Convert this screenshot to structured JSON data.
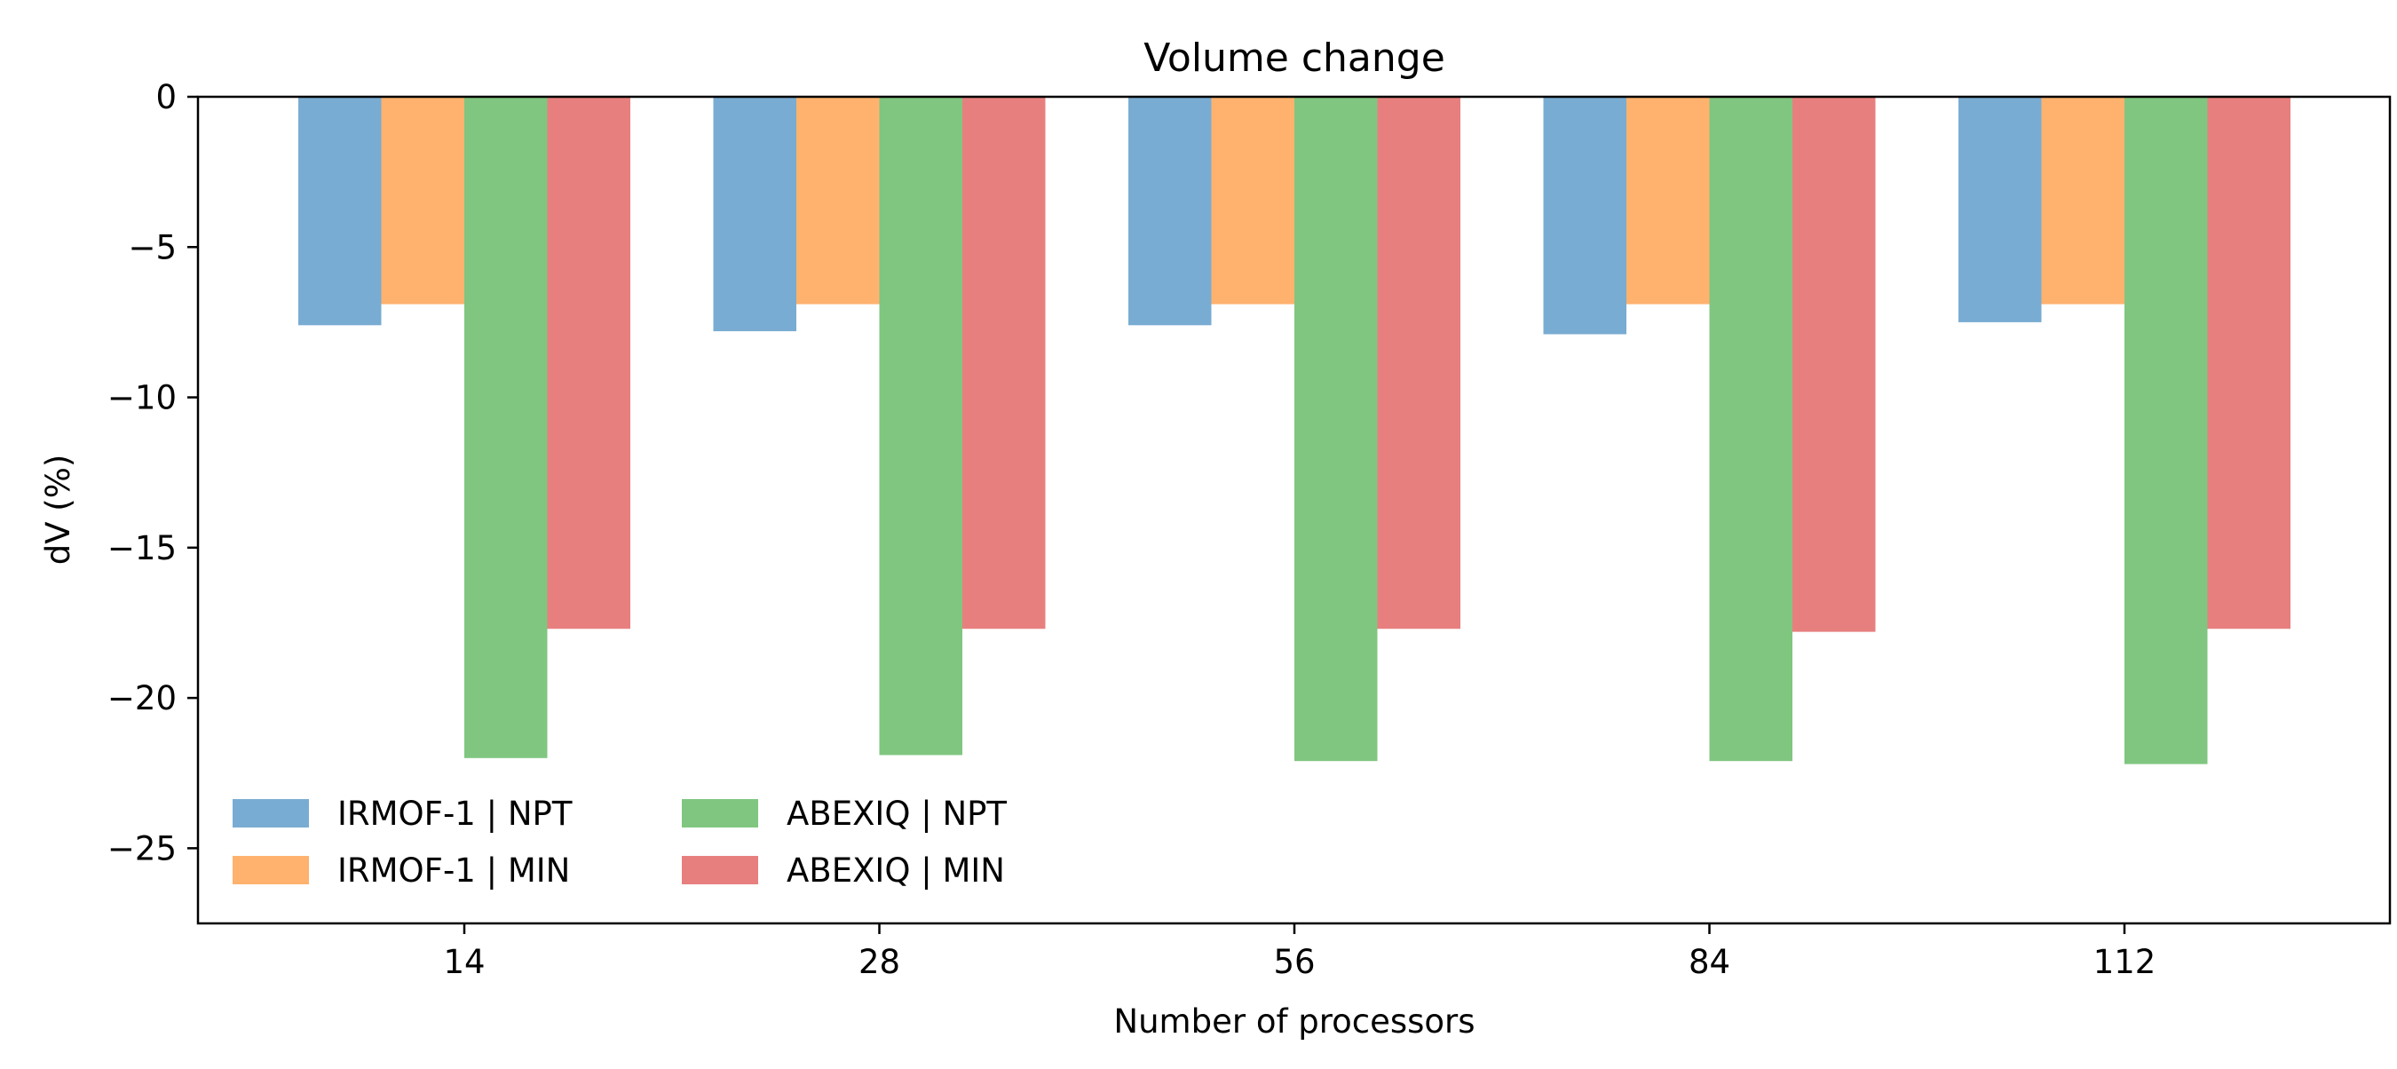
{
  "chart_data": {
    "type": "bar",
    "title": "Volume change",
    "xlabel": "Number of processors",
    "ylabel": "dV (%)",
    "categories": [
      "14",
      "28",
      "56",
      "84",
      "112"
    ],
    "ylim": [
      -27.5,
      0
    ],
    "yticks": [
      0,
      -5,
      -10,
      -15,
      -20,
      -25
    ],
    "ytick_labels": [
      "0",
      "−5",
      "−10",
      "−15",
      "−20",
      "−25"
    ],
    "series": [
      {
        "name": "IRMOF-1 | NPT",
        "color": "#79acd2",
        "values": [
          -7.6,
          -7.8,
          -7.6,
          -7.9,
          -7.5
        ]
      },
      {
        "name": "IRMOF-1 | MIN",
        "color": "#ffb26e",
        "values": [
          -6.9,
          -6.9,
          -6.9,
          -6.9,
          -6.9
        ]
      },
      {
        "name": "ABEXIQ | NPT",
        "color": "#80c680",
        "values": [
          -22.0,
          -21.9,
          -22.1,
          -22.1,
          -22.2
        ]
      },
      {
        "name": "ABEXIQ | MIN",
        "color": "#e87f7f",
        "values": [
          -17.7,
          -17.7,
          -17.7,
          -17.8,
          -17.7
        ]
      }
    ],
    "grid": false,
    "legend": {
      "placement": "lower-left",
      "columns": 2
    }
  }
}
